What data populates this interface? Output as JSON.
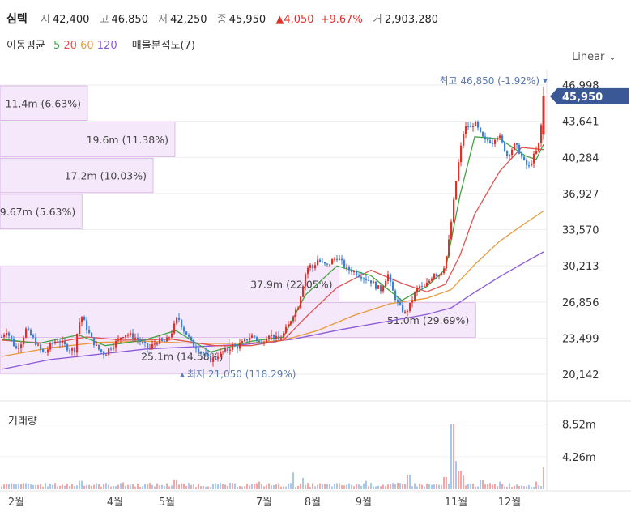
{
  "header": {
    "name": "심텍",
    "open_label": "시",
    "open": "42,400",
    "high_label": "고",
    "high": "46,850",
    "low_label": "저",
    "low": "42,250",
    "close_label": "종",
    "close": "45,950",
    "change": "▲4,050",
    "change_pct": "+9.67%",
    "volume_label": "거",
    "volume": "2,903,280"
  },
  "ma": {
    "label": "이동평균",
    "periods": [
      "5",
      "20",
      "60",
      "120"
    ],
    "volume_profile": "매물분석도(7)"
  },
  "scale_button": "Linear",
  "volume_title": "거래량",
  "colors": {
    "up": "#e0302a",
    "down": "#3b82d6",
    "ma5": "#3fa33f",
    "ma20": "#e0534f",
    "ma60": "#e89a3c",
    "ma120": "#8b5ad6",
    "profile": "#c98bdb",
    "price_tag": "#3b5896"
  },
  "chart_data": {
    "type": "candlestick",
    "price_axis": {
      "ticks": [
        "46,998",
        "43,641",
        "40,284",
        "36,927",
        "33,570",
        "30,213",
        "26,856",
        "23,499",
        "20,142"
      ],
      "range": [
        20142,
        46998
      ]
    },
    "volume_axis": {
      "ticks": [
        "8.52m",
        "4.26m"
      ]
    },
    "x_labels": [
      "2월",
      "4월",
      "5월",
      "7월",
      "8월",
      "9월",
      "11월",
      "12월"
    ],
    "current_price": "45,950",
    "high_marker": "최고 46,850 (-1.92%)",
    "low_marker": "최저 21,050 (118.29%)",
    "volume_profile": [
      {
        "label": "11.4m (6.63%)",
        "price_lo": 43641,
        "price_hi": 46998
      },
      {
        "label": "19.6m (11.38%)",
        "price_lo": 40284,
        "price_hi": 43641
      },
      {
        "label": "17.2m (10.03%)",
        "price_lo": 36927,
        "price_hi": 40284
      },
      {
        "label": "9.67m (5.63%)",
        "price_lo": 33570,
        "price_hi": 36927
      },
      {
        "label": "37.9m (22.05%)",
        "price_lo": 26856,
        "price_hi": 30213
      },
      {
        "label": "51.0m (29.69%)",
        "price_lo": 23499,
        "price_hi": 26856
      },
      {
        "label": "25.1m (14.58%)",
        "price_lo": 20142,
        "price_hi": 23499
      }
    ],
    "price_path": [
      [
        0,
        23600
      ],
      [
        4,
        24200
      ],
      [
        8,
        23300
      ],
      [
        12,
        22500
      ],
      [
        16,
        23100
      ],
      [
        20,
        24300
      ],
      [
        25,
        23600
      ],
      [
        30,
        22700
      ],
      [
        35,
        22000
      ],
      [
        40,
        22800
      ],
      [
        45,
        23300
      ],
      [
        50,
        23000
      ],
      [
        55,
        22500
      ],
      [
        60,
        22400
      ],
      [
        63,
        24700
      ],
      [
        66,
        25500
      ],
      [
        70,
        24400
      ],
      [
        74,
        23400
      ],
      [
        78,
        22700
      ],
      [
        82,
        22200
      ],
      [
        85,
        22000
      ],
      [
        89,
        22600
      ],
      [
        93,
        23000
      ],
      [
        97,
        23500
      ],
      [
        101,
        23900
      ],
      [
        105,
        23800
      ],
      [
        109,
        23600
      ],
      [
        113,
        23300
      ],
      [
        117,
        22900
      ],
      [
        121,
        22500
      ],
      [
        125,
        22900
      ],
      [
        129,
        23300
      ],
      [
        133,
        23100
      ],
      [
        137,
        23400
      ],
      [
        141,
        24300
      ],
      [
        143,
        25000
      ],
      [
        145,
        25500
      ],
      [
        148,
        24700
      ],
      [
        151,
        24000
      ],
      [
        154,
        23500
      ],
      [
        157,
        22900
      ],
      [
        160,
        22700
      ],
      [
        163,
        22300
      ],
      [
        166,
        22100
      ],
      [
        169,
        21700
      ],
      [
        172,
        21500
      ],
      [
        175,
        21600
      ],
      [
        178,
        21900
      ],
      [
        181,
        22200
      ],
      [
        184,
        22300
      ],
      [
        187,
        22500
      ],
      [
        190,
        22800
      ],
      [
        193,
        22600
      ],
      [
        196,
        22900
      ],
      [
        199,
        23100
      ],
      [
        202,
        23400
      ],
      [
        205,
        23700
      ],
      [
        208,
        23600
      ],
      [
        211,
        23200
      ],
      [
        214,
        22900
      ],
      [
        217,
        23500
      ],
      [
        220,
        23900
      ],
      [
        224,
        23600
      ],
      [
        228,
        23300
      ],
      [
        232,
        23900
      ],
      [
        236,
        24700
      ],
      [
        240,
        25700
      ],
      [
        244,
        26500
      ],
      [
        246,
        27500
      ],
      [
        248,
        28500
      ],
      [
        250,
        29500
      ],
      [
        253,
        30300
      ],
      [
        256,
        30000
      ],
      [
        260,
        30800
      ],
      [
        264,
        30400
      ],
      [
        268,
        30200
      ],
      [
        272,
        30700
      ],
      [
        276,
        31000
      ],
      [
        280,
        30500
      ],
      [
        284,
        29900
      ],
      [
        288,
        29800
      ],
      [
        292,
        29500
      ],
      [
        296,
        29300
      ],
      [
        300,
        29000
      ],
      [
        304,
        28800
      ],
      [
        308,
        28300
      ],
      [
        312,
        28000
      ],
      [
        316,
        29000
      ],
      [
        318,
        29400
      ],
      [
        320,
        28500
      ],
      [
        323,
        27500
      ],
      [
        326,
        26700
      ],
      [
        329,
        26200
      ],
      [
        332,
        25800
      ],
      [
        335,
        26300
      ],
      [
        338,
        27100
      ],
      [
        341,
        27900
      ],
      [
        344,
        28300
      ],
      [
        347,
        28100
      ],
      [
        350,
        28500
      ],
      [
        353,
        29000
      ],
      [
        356,
        29600
      ],
      [
        359,
        29300
      ],
      [
        362,
        29700
      ],
      [
        365,
        30400
      ],
      [
        368,
        32500
      ],
      [
        371,
        35200
      ],
      [
        374,
        38100
      ],
      [
        377,
        40600
      ],
      [
        380,
        42500
      ],
      [
        383,
        43300
      ],
      [
        386,
        43000
      ],
      [
        389,
        43600
      ],
      [
        392,
        42900
      ],
      [
        395,
        42200
      ],
      [
        398,
        41800
      ],
      [
        401,
        41900
      ],
      [
        404,
        41700
      ],
      [
        407,
        42400
      ],
      [
        410,
        42100
      ],
      [
        413,
        41300
      ],
      [
        416,
        40500
      ],
      [
        419,
        40900
      ],
      [
        422,
        41400
      ],
      [
        425,
        41100
      ],
      [
        428,
        40300
      ],
      [
        431,
        39600
      ],
      [
        434,
        39400
      ],
      [
        437,
        40200
      ],
      [
        440,
        40800
      ],
      [
        443,
        41900
      ],
      [
        446,
        45950
      ]
    ],
    "ma5_path": [
      [
        0,
        23400
      ],
      [
        30,
        23000
      ],
      [
        63,
        23800
      ],
      [
        85,
        22800
      ],
      [
        117,
        23300
      ],
      [
        143,
        24200
      ],
      [
        172,
        22200
      ],
      [
        205,
        23200
      ],
      [
        232,
        23600
      ],
      [
        250,
        27500
      ],
      [
        276,
        30200
      ],
      [
        304,
        29300
      ],
      [
        329,
        27000
      ],
      [
        350,
        28300
      ],
      [
        365,
        29900
      ],
      [
        377,
        36800
      ],
      [
        389,
        42200
      ],
      [
        410,
        42000
      ],
      [
        431,
        40400
      ],
      [
        440,
        40100
      ],
      [
        446,
        41500
      ]
    ],
    "ma20_path": [
      [
        0,
        23300
      ],
      [
        40,
        23000
      ],
      [
        70,
        23600
      ],
      [
        100,
        23300
      ],
      [
        140,
        23400
      ],
      [
        175,
        22800
      ],
      [
        205,
        22800
      ],
      [
        232,
        23300
      ],
      [
        250,
        25400
      ],
      [
        276,
        28200
      ],
      [
        304,
        29800
      ],
      [
        329,
        28600
      ],
      [
        350,
        27800
      ],
      [
        365,
        28500
      ],
      [
        377,
        31200
      ],
      [
        389,
        35000
      ],
      [
        410,
        39000
      ],
      [
        428,
        41200
      ],
      [
        446,
        41000
      ]
    ],
    "ma60_path": [
      [
        0,
        21800
      ],
      [
        40,
        22600
      ],
      [
        80,
        23100
      ],
      [
        120,
        23200
      ],
      [
        160,
        23000
      ],
      [
        200,
        23000
      ],
      [
        232,
        23300
      ],
      [
        260,
        24200
      ],
      [
        290,
        25600
      ],
      [
        320,
        26700
      ],
      [
        350,
        27200
      ],
      [
        370,
        28000
      ],
      [
        390,
        30400
      ],
      [
        410,
        32500
      ],
      [
        430,
        34100
      ],
      [
        446,
        35300
      ]
    ],
    "ma120_path": [
      [
        0,
        20600
      ],
      [
        40,
        21500
      ],
      [
        80,
        22000
      ],
      [
        120,
        22500
      ],
      [
        160,
        22700
      ],
      [
        200,
        22900
      ],
      [
        240,
        23400
      ],
      [
        280,
        24300
      ],
      [
        320,
        25100
      ],
      [
        350,
        25700
      ],
      [
        370,
        26300
      ],
      [
        390,
        27800
      ],
      [
        410,
        29200
      ],
      [
        430,
        30500
      ],
      [
        446,
        31500
      ]
    ],
    "volume_spikes": [
      [
        18,
        0.8
      ],
      [
        65,
        1.1
      ],
      [
        100,
        0.9
      ],
      [
        143,
        1.3
      ],
      [
        212,
        1.0
      ],
      [
        240,
        2.2
      ],
      [
        248,
        1.5
      ],
      [
        300,
        1.1
      ],
      [
        335,
        1.9
      ],
      [
        365,
        1.6
      ],
      [
        371,
        8.52
      ],
      [
        374,
        3.7
      ],
      [
        377,
        2.4
      ],
      [
        380,
        1.8
      ],
      [
        395,
        1.2
      ],
      [
        410,
        1.0
      ],
      [
        440,
        1.0
      ],
      [
        446,
        2.9
      ]
    ]
  }
}
